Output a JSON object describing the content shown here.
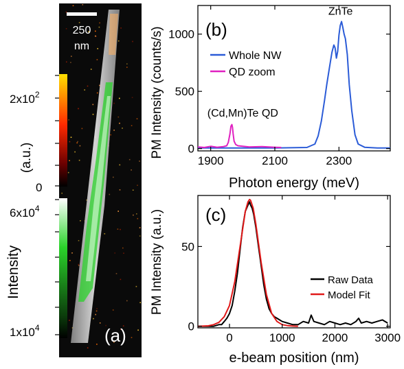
{
  "figure": {
    "panel_a": {
      "label": "(a)",
      "scale_bar_value": "250",
      "scale_bar_unit": "nm",
      "colorbar_top_ticks": [
        "2x10",
        "0"
      ],
      "colorbar_top_exp": "2",
      "colorbar_top_unit": "(a.u.)",
      "colorbar_bottom_ticks": [
        "6x10",
        "1x10"
      ],
      "colorbar_bottom_exp": "4",
      "colorbar_axis_label": "Intensity",
      "colors": {
        "background": "#0a0a0a",
        "nanowire": "#c9c9c9",
        "cl_overlay": "#2bd32b",
        "hot_top": "#ffe000",
        "hot_mid": "#ff2a00",
        "hot_low": "#6a0000"
      }
    },
    "panel_b": {
      "label": "(b)"
    },
    "panel_c": {
      "label": "(c)"
    }
  },
  "chart_data": [
    {
      "type": "line",
      "panel": "b",
      "xlabel": "Photon energy (meV)",
      "ylabel": "PM Intensity (counts/s)",
      "xlim": [
        1860,
        2460
      ],
      "ylim": [
        -20,
        1250
      ],
      "xticks": [
        1900,
        2100,
        2300
      ],
      "yticks": [
        0,
        500,
        1000
      ],
      "legend_position": "top-left",
      "annotations": [
        {
          "text": "ZnTe",
          "x": 2305,
          "y": 1170
        },
        {
          "text": "(Cd,Mn)Te QD",
          "x": 2000,
          "y": 280
        }
      ],
      "series": [
        {
          "name": "Whole NW",
          "color": "#2a5bd7",
          "x": [
            1860,
            1900,
            1950,
            2000,
            2100,
            2200,
            2225,
            2235,
            2245,
            2255,
            2262,
            2270,
            2278,
            2284,
            2288,
            2292,
            2296,
            2300,
            2304,
            2308,
            2312,
            2316,
            2320,
            2326,
            2332,
            2340,
            2350,
            2360,
            2380,
            2420,
            2460
          ],
          "y": [
            5,
            5,
            5,
            5,
            5,
            10,
            40,
            110,
            240,
            420,
            560,
            700,
            840,
            905,
            880,
            790,
            850,
            990,
            1075,
            1110,
            1060,
            1000,
            960,
            820,
            560,
            330,
            120,
            40,
            12,
            5,
            5
          ]
        },
        {
          "name": "QD zoom",
          "color": "#e020c0",
          "x": [
            1860,
            1880,
            1900,
            1920,
            1940,
            1950,
            1955,
            1960,
            1963,
            1966,
            1968,
            1970,
            1973,
            1978,
            1985,
            2000,
            2020,
            2060,
            2100,
            2120
          ],
          "y": [
            15,
            10,
            20,
            12,
            18,
            25,
            55,
            130,
            195,
            210,
            185,
            130,
            65,
            35,
            25,
            20,
            14,
            18,
            12,
            10
          ]
        }
      ]
    },
    {
      "type": "line",
      "panel": "c",
      "xlabel": "e-beam position (nm)",
      "ylabel": "PM Intensity (a.u.)",
      "xlim": [
        -600,
        3050
      ],
      "ylim": [
        -1,
        82
      ],
      "xticks": [
        0,
        1000,
        2000,
        3000
      ],
      "yticks": [
        0,
        50
      ],
      "legend_position": "bottom-right",
      "series": [
        {
          "name": "Raw Data",
          "color": "#000000",
          "x": [
            -600,
            -400,
            -300,
            -200,
            -150,
            -100,
            -50,
            0,
            50,
            100,
            150,
            200,
            250,
            300,
            350,
            380,
            400,
            430,
            460,
            500,
            550,
            600,
            650,
            700,
            750,
            800,
            850,
            900,
            950,
            1000,
            1100,
            1200,
            1300,
            1400,
            1500,
            1550,
            1600,
            1700,
            1800,
            1900,
            2000,
            2100,
            2200,
            2300,
            2400,
            2450,
            2500,
            2600,
            2700,
            2800,
            2900,
            3000
          ],
          "y": [
            0,
            0,
            0,
            1,
            1,
            3,
            5,
            8,
            13,
            22,
            33,
            48,
            62,
            72,
            76,
            78,
            76,
            74,
            70,
            62,
            50,
            38,
            26,
            17,
            11,
            8,
            6,
            5,
            4,
            3,
            2,
            1,
            1,
            3,
            2,
            7,
            3,
            2,
            1,
            3,
            2,
            1,
            2,
            1,
            3,
            5,
            2,
            3,
            2,
            3,
            4,
            2
          ]
        },
        {
          "name": "Model Fit",
          "color": "#e01818",
          "x": [
            -600,
            -400,
            -300,
            -200,
            -100,
            0,
            100,
            200,
            300,
            350,
            380,
            400,
            450,
            500,
            600,
            700,
            800,
            900,
            1000,
            1100,
            1200,
            1300
          ],
          "y": [
            0,
            0.3,
            1,
            2.5,
            6,
            13,
            28,
            50,
            72,
            78,
            79.5,
            79,
            74,
            64,
            40,
            20,
            8,
            3,
            1,
            0.4,
            0.1,
            0
          ]
        }
      ]
    }
  ]
}
